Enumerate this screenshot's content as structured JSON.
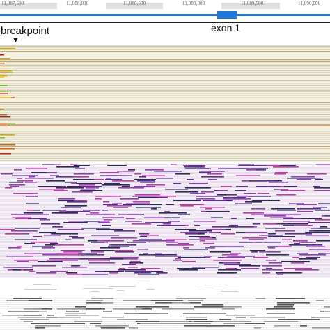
{
  "ruler": {
    "ticks": [
      {
        "label": "11,087,500"
      },
      {
        "label": "11,088,000"
      },
      {
        "label": "11,088,500"
      },
      {
        "label": "11,089,000"
      },
      {
        "label": "11,089,500"
      },
      {
        "label": "11,090,000"
      }
    ]
  },
  "annotations": {
    "breakpoint_label": "breakpoint",
    "breakpoint_marker": "▼",
    "exon_label": "exon 1"
  },
  "colors": {
    "gene_model": "#1f78d9",
    "panel1_background": "#f3f1e2",
    "panel2_background": "#f7f1f8",
    "panel2_reads": [
      "#5b2d8c",
      "#c03aa8",
      "#8e3fb0",
      "#2a2a5a"
    ],
    "panel1_clipped_reads": [
      "#d8a800",
      "#6bbf2a",
      "#b22222",
      "#c46a1a"
    ],
    "panel4_reads": [
      "#9a9a9a",
      "#555555"
    ]
  }
}
